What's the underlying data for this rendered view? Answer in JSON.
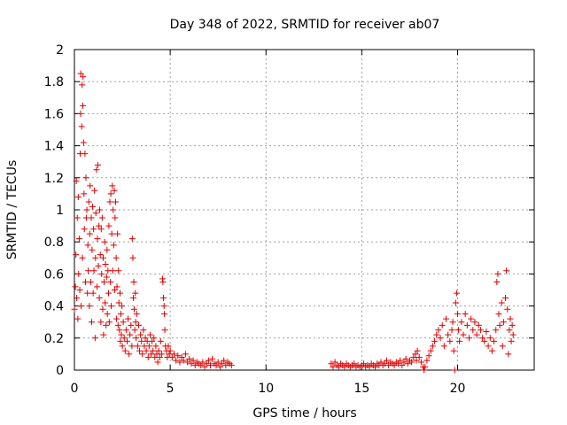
{
  "chart_data": {
    "type": "scatter",
    "title": "Day 348 of 2022, SRMTID for receiver ab07",
    "xlabel": "GPS time / hours",
    "ylabel": "SRMTID / TECUs",
    "xlim": [
      0,
      24
    ],
    "ylim": [
      0,
      2
    ],
    "xticks": [
      0,
      5,
      10,
      15,
      20
    ],
    "xtick_labels": [
      "0",
      "5",
      "10",
      "15",
      "20"
    ],
    "yticks": [
      0,
      0.2,
      0.4,
      0.6,
      0.8,
      1,
      1.2,
      1.4,
      1.6,
      1.8,
      2
    ],
    "ytick_labels": [
      "0",
      "0.2",
      "0.4",
      "0.6",
      "0.8",
      "1",
      "1.2",
      "1.4",
      "1.6",
      "1.8",
      "2"
    ],
    "grid": true,
    "marker": "+",
    "series": [
      {
        "name": "SRMTID",
        "color": "#e00000",
        "points": [
          [
            0.0,
            0.38
          ],
          [
            0.05,
            0.52
          ],
          [
            0.08,
            0.72
          ],
          [
            0.1,
            1.18
          ],
          [
            0.12,
            0.45
          ],
          [
            0.15,
            0.95
          ],
          [
            0.18,
            0.32
          ],
          [
            0.2,
            1.08
          ],
          [
            0.22,
            0.6
          ],
          [
            0.25,
            0.82
          ],
          [
            0.28,
            0.5
          ],
          [
            0.3,
            1.35
          ],
          [
            0.32,
            1.6
          ],
          [
            0.33,
            1.85
          ],
          [
            0.35,
            0.4
          ],
          [
            0.38,
            1.52
          ],
          [
            0.4,
            1.78
          ],
          [
            0.42,
            0.7
          ],
          [
            0.44,
            1.65
          ],
          [
            0.45,
            1.83
          ],
          [
            0.48,
            1.42
          ],
          [
            0.5,
            1.1
          ],
          [
            0.52,
            0.88
          ],
          [
            0.55,
            1.35
          ],
          [
            0.58,
            0.55
          ],
          [
            0.6,
            1.2
          ],
          [
            0.62,
            0.95
          ],
          [
            0.65,
            1.0
          ],
          [
            0.68,
            0.48
          ],
          [
            0.7,
            0.78
          ],
          [
            0.72,
            0.62
          ],
          [
            0.75,
            1.05
          ],
          [
            0.78,
            0.4
          ],
          [
            0.8,
            0.85
          ],
          [
            0.82,
            1.15
          ],
          [
            0.85,
            0.55
          ],
          [
            0.88,
            0.95
          ],
          [
            0.9,
            0.3
          ],
          [
            0.92,
            0.75
          ],
          [
            0.95,
            1.02
          ],
          [
            0.98,
            0.48
          ],
          [
            1.0,
            0.88
          ],
          [
            1.02,
            0.62
          ],
          [
            1.05,
            1.12
          ],
          [
            1.08,
            0.2
          ],
          [
            1.1,
            0.7
          ],
          [
            1.12,
            0.98
          ],
          [
            1.15,
            1.25
          ],
          [
            1.18,
            0.52
          ],
          [
            1.2,
            0.82
          ],
          [
            1.22,
            1.28
          ],
          [
            1.25,
            0.65
          ],
          [
            1.28,
            0.9
          ],
          [
            1.3,
            0.45
          ],
          [
            1.32,
            1.0
          ],
          [
            1.35,
            0.72
          ],
          [
            1.38,
            0.3
          ],
          [
            1.4,
            0.88
          ],
          [
            1.42,
            0.6
          ],
          [
            1.45,
            0.95
          ],
          [
            1.48,
            0.38
          ],
          [
            1.5,
            0.7
          ],
          [
            1.52,
            0.22
          ],
          [
            1.55,
            0.55
          ],
          [
            1.58,
            0.8
          ],
          [
            1.6,
            0.42
          ],
          [
            1.62,
            0.66
          ],
          [
            1.65,
            0.28
          ],
          [
            1.68,
            0.58
          ],
          [
            1.7,
            0.75
          ],
          [
            1.72,
            0.35
          ],
          [
            1.75,
            0.62
          ],
          [
            1.78,
            0.48
          ],
          [
            1.8,
            0.9
          ],
          [
            1.82,
            0.3
          ],
          [
            1.85,
            1.05
          ],
          [
            1.88,
            0.55
          ],
          [
            1.9,
            1.1
          ],
          [
            1.92,
            0.4
          ],
          [
            1.95,
            0.85
          ],
          [
            1.98,
            1.15
          ],
          [
            2.0,
            0.62
          ],
          [
            2.02,
            1.0
          ],
          [
            2.05,
            0.78
          ],
          [
            2.08,
            1.12
          ],
          [
            2.1,
            0.5
          ],
          [
            2.12,
            0.95
          ],
          [
            2.15,
            1.05
          ],
          [
            2.18,
            0.7
          ],
          [
            2.2,
            0.32
          ],
          [
            2.22,
            0.52
          ],
          [
            2.25,
            0.85
          ],
          [
            2.28,
            0.28
          ],
          [
            2.3,
            0.62
          ],
          [
            2.32,
            0.42
          ],
          [
            2.35,
            0.25
          ],
          [
            2.38,
            0.48
          ],
          [
            2.4,
            0.18
          ],
          [
            2.42,
            0.35
          ],
          [
            2.45,
            0.22
          ],
          [
            2.48,
            0.4
          ],
          [
            2.5,
            0.15
          ],
          [
            2.55,
            0.3
          ],
          [
            2.6,
            0.2
          ],
          [
            2.65,
            0.12
          ],
          [
            2.7,
            0.25
          ],
          [
            2.75,
            0.18
          ],
          [
            2.8,
            0.32
          ],
          [
            2.85,
            0.1
          ],
          [
            2.9,
            0.22
          ],
          [
            2.95,
            0.28
          ],
          [
            3.0,
            0.15
          ],
          [
            3.02,
            0.82
          ],
          [
            3.05,
            0.7
          ],
          [
            3.08,
            0.45
          ],
          [
            3.1,
            0.55
          ],
          [
            3.12,
            0.38
          ],
          [
            3.15,
            0.25
          ],
          [
            3.18,
            0.48
          ],
          [
            3.2,
            0.3
          ],
          [
            3.22,
            0.2
          ],
          [
            3.25,
            0.35
          ],
          [
            3.3,
            0.15
          ],
          [
            3.35,
            0.28
          ],
          [
            3.4,
            0.12
          ],
          [
            3.45,
            0.22
          ],
          [
            3.5,
            0.18
          ],
          [
            3.55,
            0.1
          ],
          [
            3.6,
            0.25
          ],
          [
            3.65,
            0.15
          ],
          [
            3.7,
            0.2
          ],
          [
            3.75,
            0.12
          ],
          [
            3.8,
            0.18
          ],
          [
            3.85,
            0.08
          ],
          [
            3.9,
            0.15
          ],
          [
            3.95,
            0.22
          ],
          [
            4.0,
            0.1
          ],
          [
            4.05,
            0.18
          ],
          [
            4.1,
            0.12
          ],
          [
            4.15,
            0.2
          ],
          [
            4.2,
            0.08
          ],
          [
            4.25,
            0.15
          ],
          [
            4.3,
            0.1
          ],
          [
            4.35,
            0.05
          ],
          [
            4.4,
            0.12
          ],
          [
            4.45,
            0.08
          ],
          [
            4.5,
            0.18
          ],
          [
            4.55,
            0.1
          ],
          [
            4.6,
            0.57
          ],
          [
            4.62,
            0.55
          ],
          [
            4.65,
            0.45
          ],
          [
            4.68,
            0.4
          ],
          [
            4.7,
            0.35
          ],
          [
            4.72,
            0.25
          ],
          [
            4.75,
            0.15
          ],
          [
            4.8,
            0.12
          ],
          [
            4.85,
            0.08
          ],
          [
            4.9,
            0.15
          ],
          [
            4.95,
            0.1
          ],
          [
            5.0,
            0.12
          ],
          [
            5.1,
            0.08
          ],
          [
            5.2,
            0.1
          ],
          [
            5.3,
            0.06
          ],
          [
            5.4,
            0.09
          ],
          [
            5.5,
            0.05
          ],
          [
            5.6,
            0.08
          ],
          [
            5.7,
            0.06
          ],
          [
            5.8,
            0.1
          ],
          [
            5.9,
            0.05
          ],
          [
            6.0,
            0.07
          ],
          [
            6.1,
            0.04
          ],
          [
            6.2,
            0.06
          ],
          [
            6.3,
            0.03
          ],
          [
            6.4,
            0.05
          ],
          [
            6.5,
            0.04
          ],
          [
            6.6,
            0.03
          ],
          [
            6.7,
            0.05
          ],
          [
            6.8,
            0.02
          ],
          [
            6.9,
            0.04
          ],
          [
            7.0,
            0.06
          ],
          [
            7.1,
            0.03
          ],
          [
            7.2,
            0.07
          ],
          [
            7.3,
            0.04
          ],
          [
            7.4,
            0.03
          ],
          [
            7.5,
            0.05
          ],
          [
            7.6,
            0.02
          ],
          [
            7.7,
            0.04
          ],
          [
            7.8,
            0.06
          ],
          [
            7.9,
            0.03
          ],
          [
            8.0,
            0.05
          ],
          [
            8.1,
            0.04
          ],
          [
            8.2,
            0.03
          ],
          [
            13.4,
            0.04
          ],
          [
            13.5,
            0.02
          ],
          [
            13.6,
            0.05
          ],
          [
            13.7,
            0.03
          ],
          [
            13.8,
            0.02
          ],
          [
            13.9,
            0.04
          ],
          [
            14.0,
            0.03
          ],
          [
            14.1,
            0.02
          ],
          [
            14.2,
            0.04
          ],
          [
            14.3,
            0.03
          ],
          [
            14.4,
            0.02
          ],
          [
            14.5,
            0.03
          ],
          [
            14.6,
            0.04
          ],
          [
            14.7,
            0.02
          ],
          [
            14.8,
            0.03
          ],
          [
            14.9,
            0.02
          ],
          [
            15.0,
            0.03
          ],
          [
            15.1,
            0.04
          ],
          [
            15.2,
            0.02
          ],
          [
            15.3,
            0.03
          ],
          [
            15.4,
            0.02
          ],
          [
            15.5,
            0.04
          ],
          [
            15.6,
            0.03
          ],
          [
            15.7,
            0.02
          ],
          [
            15.8,
            0.04
          ],
          [
            15.9,
            0.03
          ],
          [
            16.0,
            0.05
          ],
          [
            16.1,
            0.03
          ],
          [
            16.2,
            0.04
          ],
          [
            16.3,
            0.06
          ],
          [
            16.4,
            0.03
          ],
          [
            16.5,
            0.05
          ],
          [
            16.6,
            0.04
          ],
          [
            16.7,
            0.03
          ],
          [
            16.8,
            0.05
          ],
          [
            16.9,
            0.04
          ],
          [
            17.0,
            0.06
          ],
          [
            17.1,
            0.03
          ],
          [
            17.2,
            0.05
          ],
          [
            17.3,
            0.07
          ],
          [
            17.4,
            0.04
          ],
          [
            17.5,
            0.06
          ],
          [
            17.6,
            0.05
          ],
          [
            17.7,
            0.08
          ],
          [
            17.8,
            0.1
          ],
          [
            17.85,
            0.06
          ],
          [
            17.9,
            0.12
          ],
          [
            18.0,
            0.08
          ],
          [
            18.1,
            0.05
          ],
          [
            18.2,
            0.02
          ],
          [
            18.25,
            0.0
          ],
          [
            18.3,
            0.02
          ],
          [
            18.4,
            0.06
          ],
          [
            18.5,
            0.09
          ],
          [
            18.6,
            0.12
          ],
          [
            18.7,
            0.15
          ],
          [
            18.8,
            0.18
          ],
          [
            18.9,
            0.22
          ],
          [
            19.0,
            0.25
          ],
          [
            19.1,
            0.2
          ],
          [
            19.2,
            0.28
          ],
          [
            19.3,
            0.15
          ],
          [
            19.4,
            0.32
          ],
          [
            19.5,
            0.22
          ],
          [
            19.6,
            0.18
          ],
          [
            19.7,
            0.25
          ],
          [
            19.75,
            0.3
          ],
          [
            19.8,
            0.12
          ],
          [
            19.85,
            0.0
          ],
          [
            19.9,
            0.42
          ],
          [
            19.95,
            0.48
          ],
          [
            20.0,
            0.35
          ],
          [
            20.05,
            0.25
          ],
          [
            20.1,
            0.18
          ],
          [
            20.2,
            0.3
          ],
          [
            20.3,
            0.22
          ],
          [
            20.4,
            0.35
          ],
          [
            20.5,
            0.28
          ],
          [
            20.6,
            0.2
          ],
          [
            20.7,
            0.32
          ],
          [
            20.8,
            0.25
          ],
          [
            20.9,
            0.3
          ],
          [
            21.0,
            0.22
          ],
          [
            21.1,
            0.28
          ],
          [
            21.2,
            0.25
          ],
          [
            21.3,
            0.2
          ],
          [
            21.4,
            0.18
          ],
          [
            21.5,
            0.24
          ],
          [
            21.6,
            0.15
          ],
          [
            21.7,
            0.2
          ],
          [
            21.8,
            0.12
          ],
          [
            21.9,
            0.18
          ],
          [
            22.0,
            0.25
          ],
          [
            22.05,
            0.55
          ],
          [
            22.1,
            0.6
          ],
          [
            22.15,
            0.35
          ],
          [
            22.2,
            0.28
          ],
          [
            22.3,
            0.42
          ],
          [
            22.35,
            0.15
          ],
          [
            22.4,
            0.3
          ],
          [
            22.5,
            0.45
          ],
          [
            22.55,
            0.62
          ],
          [
            22.6,
            0.38
          ],
          [
            22.65,
            0.1
          ],
          [
            22.7,
            0.25
          ],
          [
            22.75,
            0.32
          ],
          [
            22.8,
            0.18
          ],
          [
            22.85,
            0.28
          ],
          [
            22.9,
            0.22
          ]
        ]
      }
    ]
  }
}
